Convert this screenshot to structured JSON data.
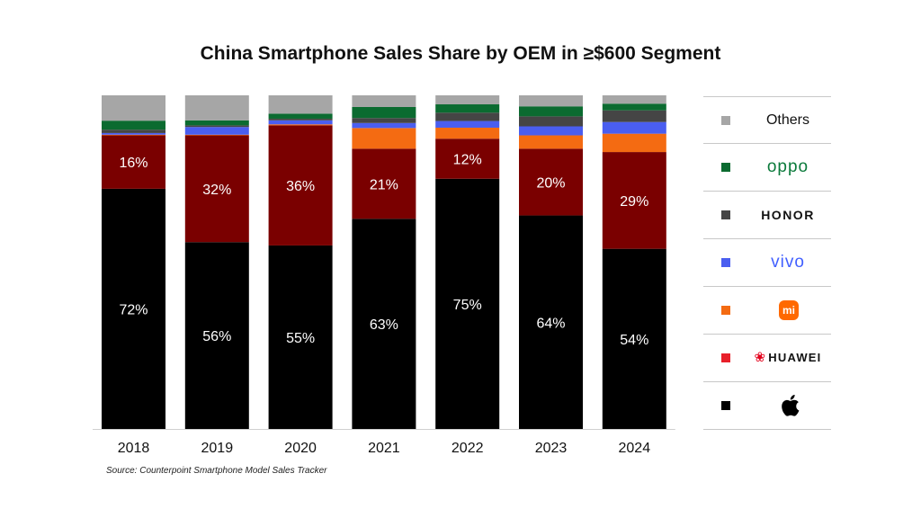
{
  "chart_data": {
    "type": "bar",
    "stacked": true,
    "title": "China Smartphone Sales Share by OEM in ≥$600 Segment",
    "source": "Source: Counterpoint Smartphone Model Sales Tracker",
    "categories": [
      "2018",
      "2019",
      "2020",
      "2021",
      "2022",
      "2023",
      "2024"
    ],
    "ylim": [
      0,
      100
    ],
    "grid": false,
    "legend_position": "right",
    "series": [
      {
        "name": "Apple",
        "color": "#000000",
        "values": [
          72,
          56,
          55,
          63,
          75,
          64,
          54
        ],
        "labels": [
          "72%",
          "56%",
          "55%",
          "63%",
          "75%",
          "64%",
          "54%"
        ],
        "label_color": "#ffffff"
      },
      {
        "name": "HUAWEI",
        "color": "#7a0000",
        "values": [
          16,
          32,
          36,
          21,
          12,
          20,
          29
        ],
        "labels": [
          "16%",
          "32%",
          "36%",
          "21%",
          "12%",
          "20%",
          "29%"
        ],
        "label_color": "#ffffff"
      },
      {
        "name": "Xiaomi",
        "color": "#f46b12",
        "values": [
          0.2,
          0.2,
          0.3,
          6.2,
          3.3,
          4,
          5.5
        ],
        "labels": []
      },
      {
        "name": "vivo",
        "color": "#4a5ef0",
        "values": [
          0.5,
          2.3,
          1.2,
          1.5,
          2,
          2.7,
          3.5
        ],
        "labels": []
      },
      {
        "name": "HONOR",
        "color": "#454545",
        "values": [
          1.0,
          0.5,
          0.5,
          1.5,
          2.5,
          3.0,
          3.5
        ],
        "labels": []
      },
      {
        "name": "OPPO",
        "color": "#0b6b30",
        "values": [
          2.7,
          1.5,
          1.5,
          3.3,
          2.5,
          3.0,
          2.0
        ],
        "labels": []
      },
      {
        "name": "Others",
        "color": "#a6a6a6",
        "values": [
          7.6,
          7.5,
          5.5,
          3.5,
          2.7,
          3.3,
          2.5
        ],
        "labels": []
      }
    ],
    "legend": [
      {
        "key": "others",
        "name": "Others",
        "color": "#a6a6a6"
      },
      {
        "key": "oppo",
        "name": "oppo",
        "color": "#0b6b30"
      },
      {
        "key": "honor",
        "name": "HONOR",
        "color": "#454545"
      },
      {
        "key": "vivo",
        "name": "vivo",
        "color": "#4a5ef0"
      },
      {
        "key": "xiaomi",
        "name": "mi",
        "color": "#f46b12"
      },
      {
        "key": "huawei",
        "name": "HUAWEI",
        "color": "#e8202a"
      },
      {
        "key": "apple",
        "name": "",
        "color": "#000000"
      }
    ]
  }
}
